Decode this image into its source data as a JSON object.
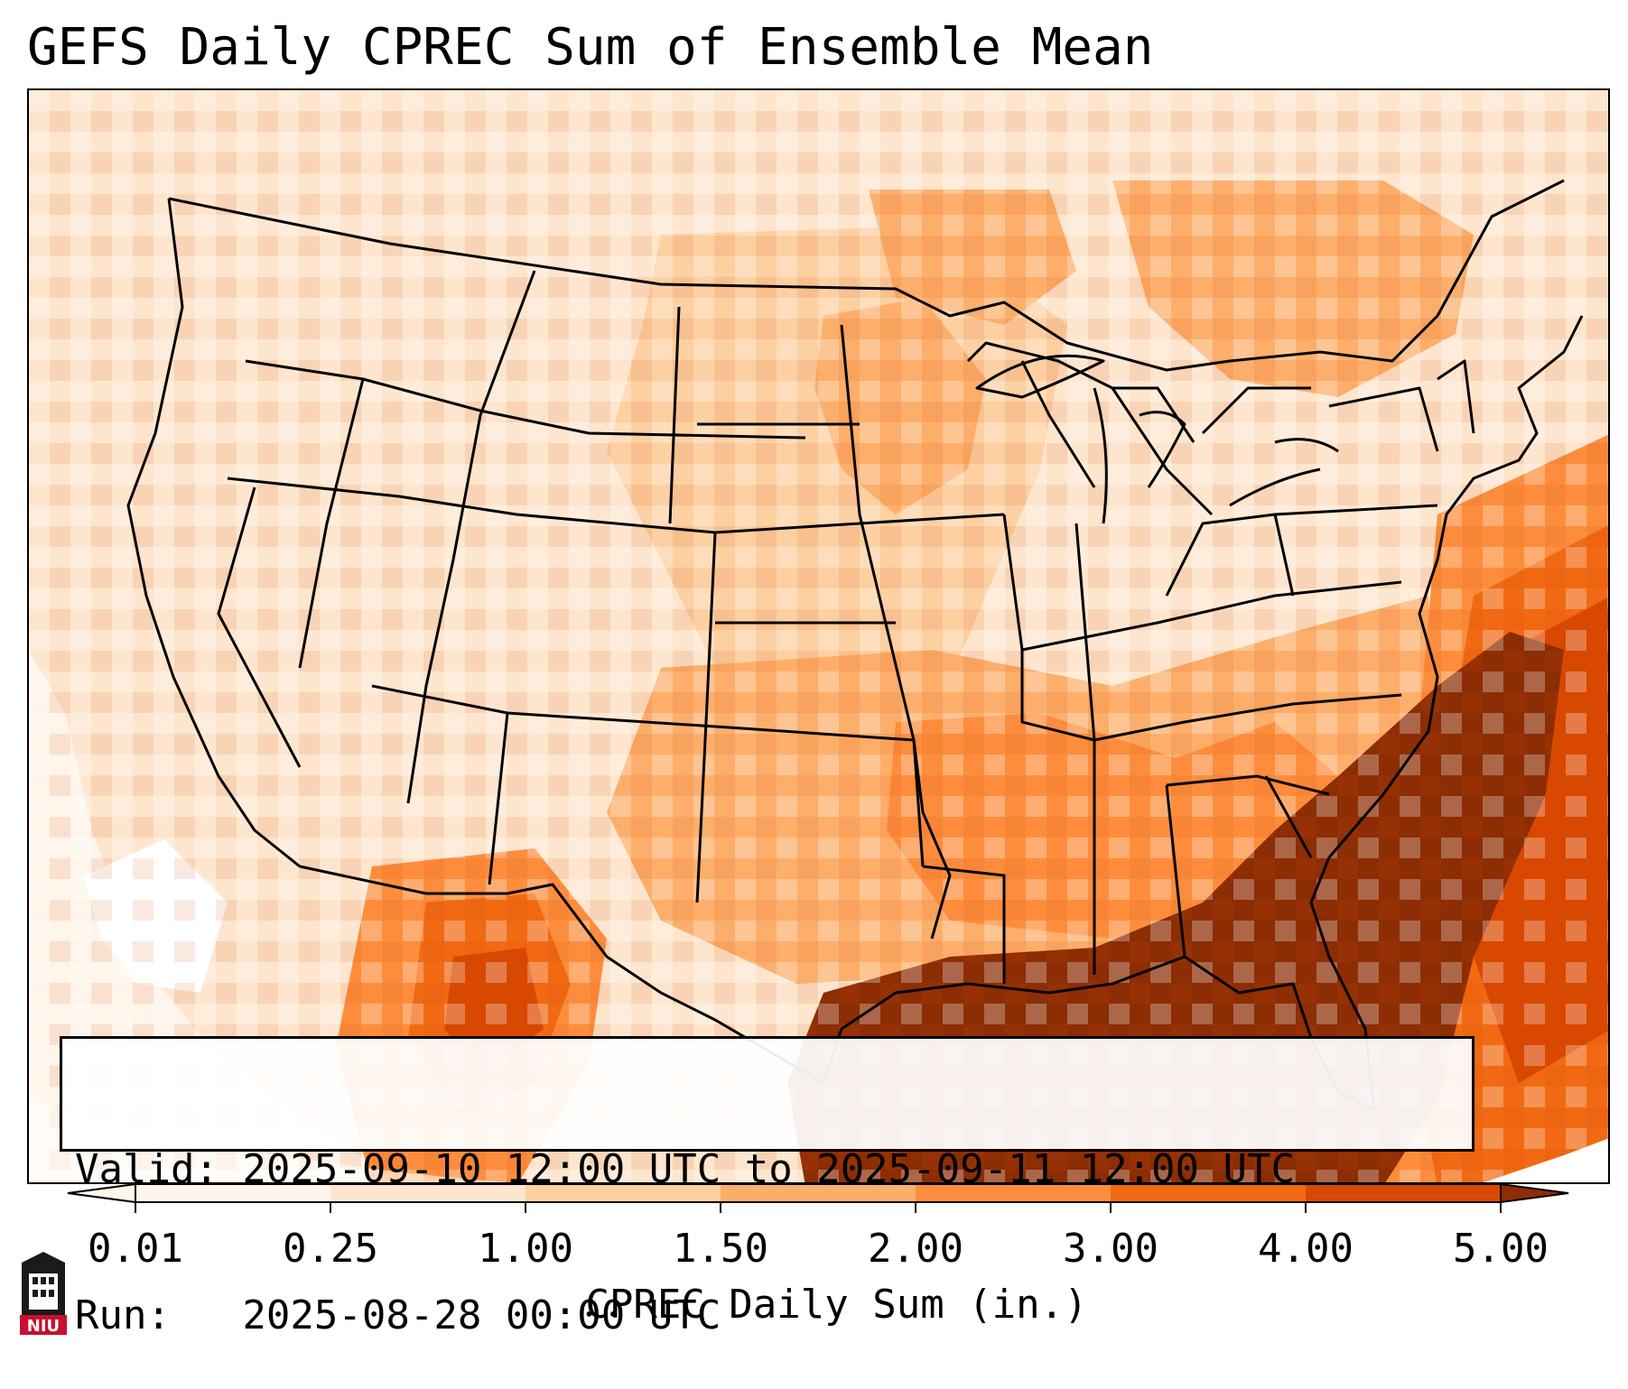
{
  "title": "GEFS Daily CPREC Sum of Ensemble Mean",
  "info": {
    "valid_label": "Valid: 2025-09-10 12:00 UTC to 2025-09-11 12:00 UTC",
    "run_label": "Run:   2025-08-28 00:00 UTC"
  },
  "colorbar": {
    "label": "CPREC Daily Sum (in.)",
    "ticks": [
      "0.01",
      "0.25",
      "1.00",
      "1.50",
      "2.00",
      "3.00",
      "4.00",
      "5.00"
    ],
    "colors": [
      "#fff5eb",
      "#fee6ce",
      "#fdd0a2",
      "#fdae6b",
      "#fd8d3c",
      "#f16913",
      "#d94801",
      "#8c2d04"
    ]
  },
  "logo": {
    "text": "NIU",
    "icon": "university-tower-icon",
    "color": "#c8102e"
  },
  "map": {
    "region": "Continental United States",
    "basemap": "state-boundaries",
    "heavy_color": "#8c2d04"
  }
}
